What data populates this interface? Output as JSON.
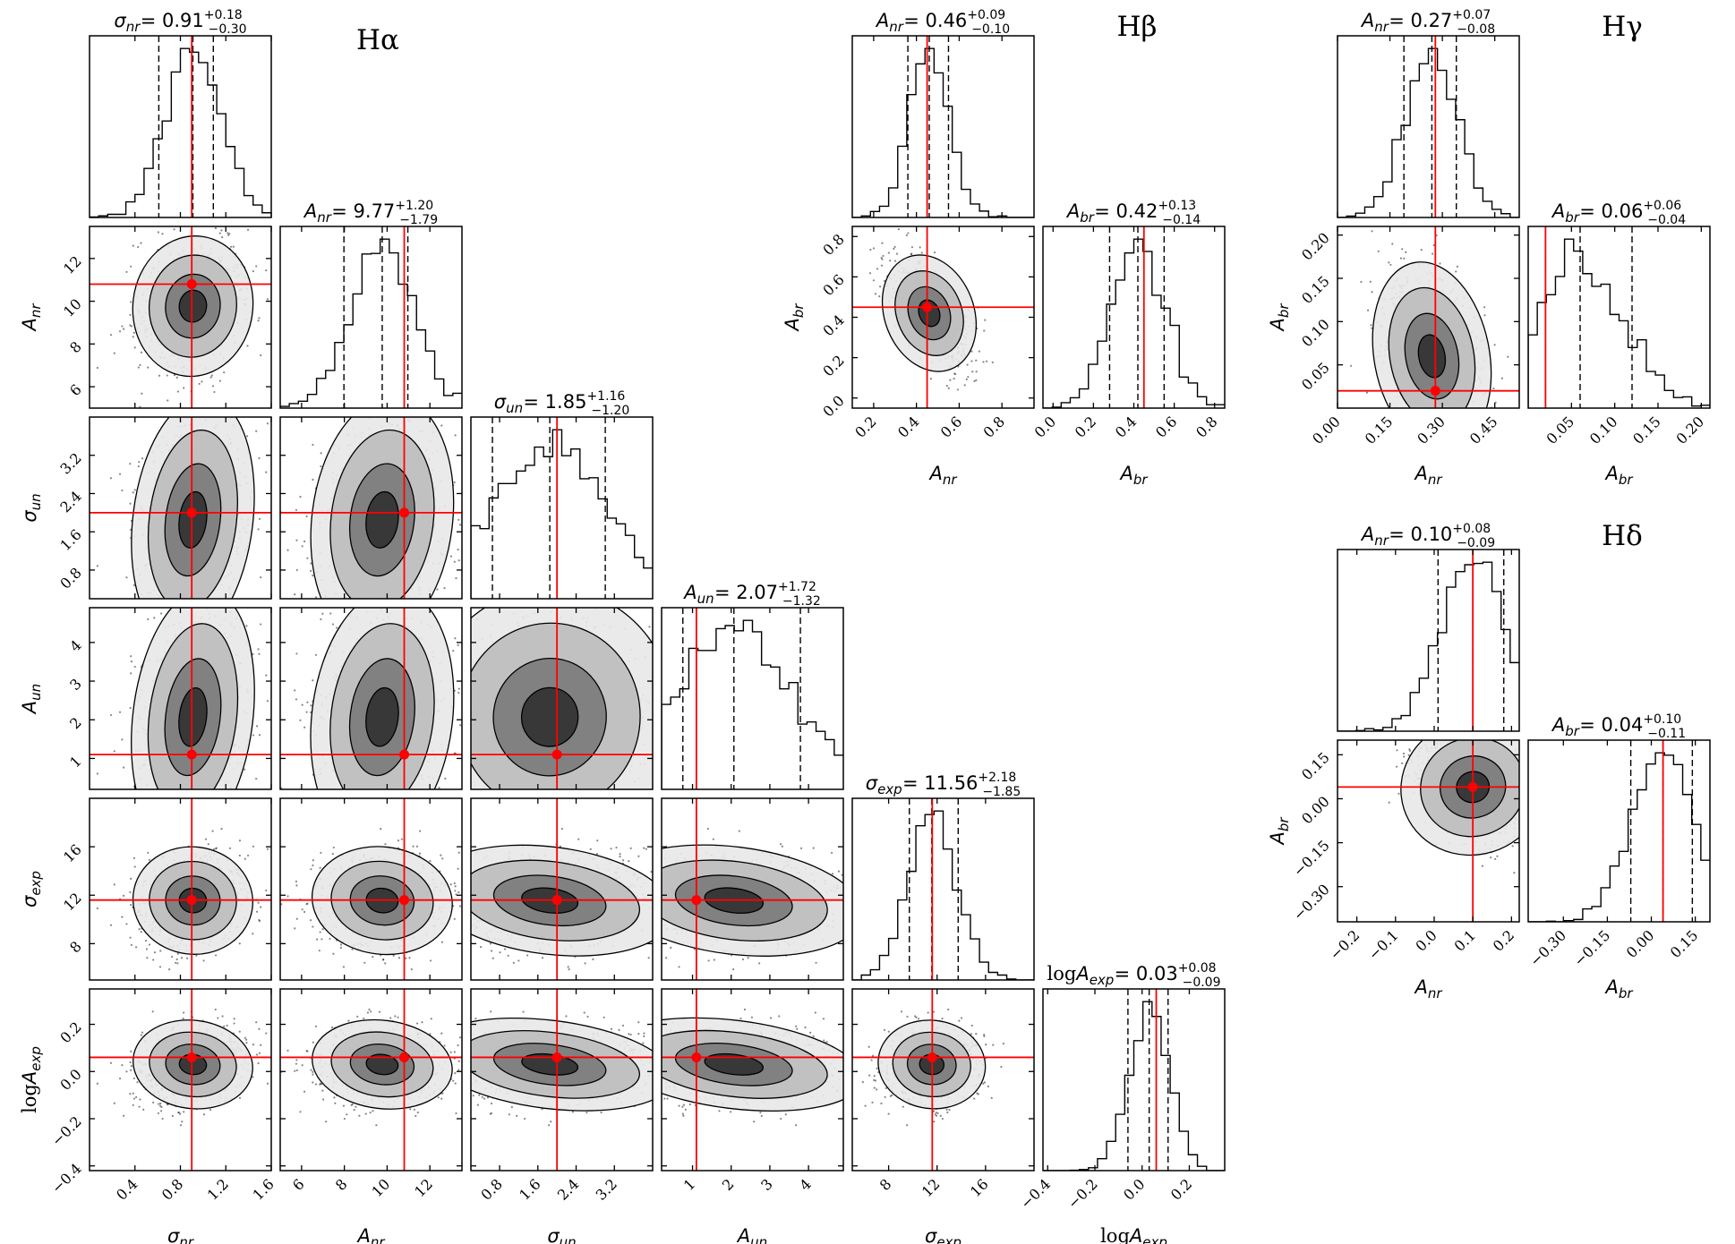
{
  "chart_data": [
    {
      "type": "corner",
      "title": "Hα",
      "parameters": [
        {
          "label": "σnr",
          "median": 0.91,
          "err_plus": 0.18,
          "err_minus": 0.3,
          "truth": 0.9,
          "range": [
            0,
            1.6
          ],
          "ticks": [
            "0.4",
            "0.8",
            "1.2",
            "1.6"
          ],
          "tick_values": [
            0.4,
            0.8,
            1.2,
            1.6
          ]
        },
        {
          "label": "Anr",
          "median": 9.77,
          "err_plus": 1.2,
          "err_minus": 1.79,
          "truth": 10.8,
          "range": [
            5,
            13.5
          ],
          "ticks": [
            "6",
            "8",
            "10",
            "12"
          ],
          "tick_values": [
            6,
            8,
            10,
            12
          ]
        },
        {
          "label": "σun",
          "median": 1.85,
          "err_plus": 1.16,
          "err_minus": 1.2,
          "truth": 2.0,
          "range": [
            0.2,
            4.0
          ],
          "ticks": [
            "0.8",
            "1.6",
            "2.4",
            "3.2"
          ],
          "tick_values": [
            0.8,
            1.6,
            2.4,
            3.2
          ]
        },
        {
          "label": "Aun",
          "median": 2.07,
          "err_plus": 1.72,
          "err_minus": 1.32,
          "truth": 1.1,
          "range": [
            0.2,
            4.9
          ],
          "ticks": [
            "1",
            "2",
            "3",
            "4"
          ],
          "tick_values": [
            1,
            2,
            3,
            4
          ]
        },
        {
          "label": "σexp",
          "median": 11.56,
          "err_plus": 2.18,
          "err_minus": 1.85,
          "truth": 11.6,
          "range": [
            5,
            20
          ],
          "ticks": [
            "8",
            "12",
            "16"
          ],
          "tick_values": [
            8,
            12,
            16
          ]
        },
        {
          "label": "logAexp",
          "median": 0.03,
          "err_plus": 0.08,
          "err_minus": 0.09,
          "truth": 0.06,
          "range": [
            -0.42,
            0.35
          ],
          "ticks": [
            "−0.4",
            "−0.2",
            "0.0",
            "0.2"
          ],
          "tick_values": [
            -0.4,
            -0.2,
            0.0,
            0.2
          ]
        }
      ]
    },
    {
      "type": "corner",
      "title": "Hβ",
      "parameters": [
        {
          "label": "Anr",
          "median": 0.46,
          "err_plus": 0.09,
          "err_minus": 0.1,
          "truth": 0.45,
          "range": [
            0.1,
            0.95
          ],
          "ticks": [
            "0.2",
            "0.4",
            "0.6",
            "0.8"
          ],
          "tick_values": [
            0.2,
            0.4,
            0.6,
            0.8
          ]
        },
        {
          "label": "Abr",
          "median": 0.42,
          "err_plus": 0.13,
          "err_minus": 0.14,
          "truth": 0.45,
          "range": [
            -0.05,
            0.85
          ],
          "ticks": [
            "0.0",
            "0.2",
            "0.4",
            "0.6",
            "0.8"
          ],
          "tick_values": [
            0.0,
            0.2,
            0.4,
            0.6,
            0.8
          ]
        }
      ]
    },
    {
      "type": "corner",
      "title": "Hγ",
      "parameters": [
        {
          "label": "Anr",
          "median": 0.27,
          "err_plus": 0.07,
          "err_minus": 0.08,
          "truth": 0.28,
          "range": [
            0.0,
            0.52
          ],
          "ticks": [
            "0.00",
            "0.15",
            "0.30",
            "0.45"
          ],
          "tick_values": [
            0.0,
            0.15,
            0.3,
            0.45
          ]
        },
        {
          "label": "Abr",
          "median": 0.06,
          "err_plus": 0.06,
          "err_minus": 0.04,
          "truth": 0.02,
          "range": [
            0.0,
            0.21
          ],
          "ticks": [
            "0.05",
            "0.10",
            "0.15",
            "0.20"
          ],
          "tick_values": [
            0.05,
            0.1,
            0.15,
            0.2
          ]
        }
      ]
    },
    {
      "type": "corner",
      "title": "Hδ",
      "parameters": [
        {
          "label": "Anr",
          "median": 0.1,
          "err_plus": 0.08,
          "err_minus": 0.09,
          "truth": 0.1,
          "range": [
            -0.25,
            0.22
          ],
          "ticks": [
            "−0.2",
            "−0.1",
            "0.0",
            "0.1",
            "0.2"
          ],
          "tick_values": [
            -0.2,
            -0.1,
            0.0,
            0.1,
            0.2
          ]
        },
        {
          "label": "Abr",
          "median": 0.04,
          "err_plus": 0.1,
          "err_minus": 0.11,
          "truth": 0.04,
          "range": [
            -0.42,
            0.2
          ],
          "ticks": [
            "−0.30",
            "−0.15",
            "0.00",
            "0.15"
          ],
          "tick_values": [
            -0.3,
            -0.15,
            0.0,
            0.15
          ]
        }
      ]
    }
  ],
  "colors": {
    "truth": "#ff0000",
    "contour": "#000000",
    "density": "#555555"
  }
}
